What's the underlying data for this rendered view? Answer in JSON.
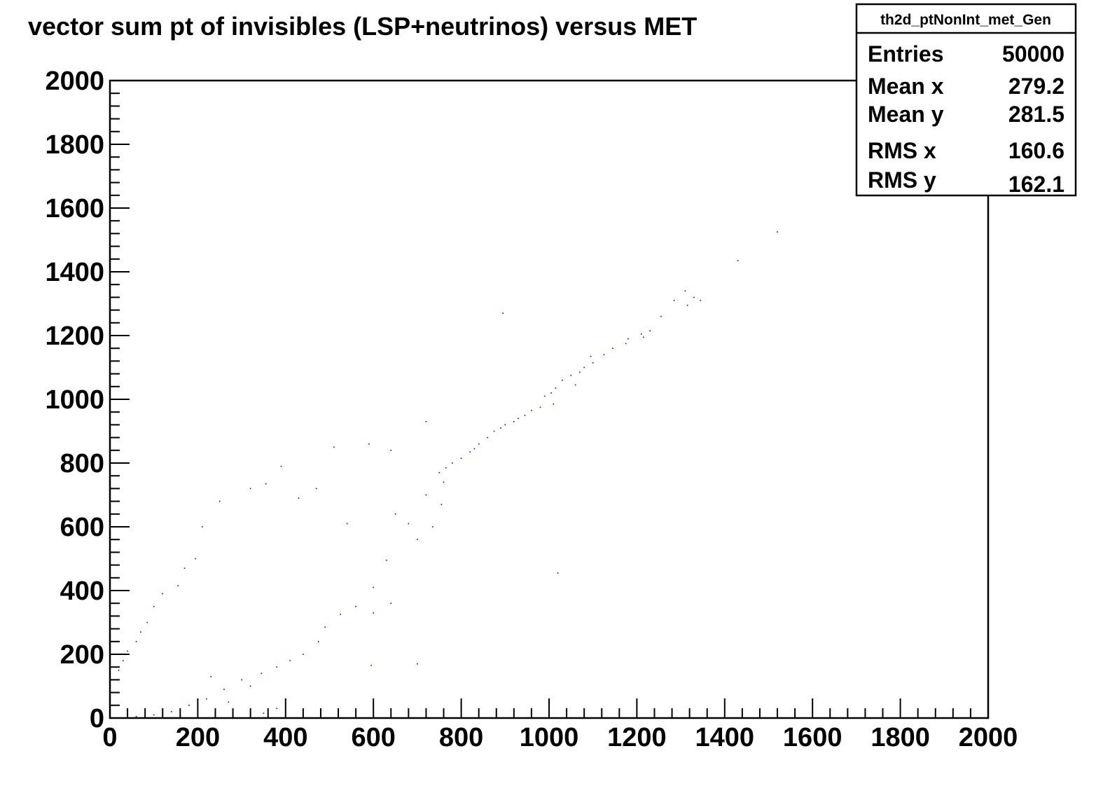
{
  "chart_data": {
    "type": "scatter",
    "title": "vector sum pt of invisibles (LSP+neutrinos) versus MET",
    "xlabel": "",
    "ylabel": "",
    "xlim": [
      0,
      2000
    ],
    "ylim": [
      0,
      2000
    ],
    "x_ticks": [
      "0",
      "200",
      "400",
      "600",
      "800",
      "1000",
      "1200",
      "1400",
      "1600",
      "1800",
      "2000"
    ],
    "y_ticks": [
      "0",
      "200",
      "400",
      "600",
      "800",
      "1000",
      "1200",
      "1400",
      "1600",
      "1800",
      "2000"
    ],
    "grid": false,
    "point_color": "#0000ff",
    "stats_box": {
      "name": "th2d_ptNonInt_met_Gen",
      "placement": "top-right",
      "rows": [
        {
          "label": "Entries",
          "value": "50000"
        },
        {
          "label": "Mean x",
          "value": "279.2"
        },
        {
          "label": "Mean y",
          "value": "281.5"
        },
        {
          "label": "RMS x",
          "value": "160.6"
        },
        {
          "label": "RMS y",
          "value": "162.1"
        }
      ]
    },
    "series": [
      {
        "points": [
          [
            1520,
            1525
          ],
          [
            1430,
            1435
          ],
          [
            1310,
            1340
          ],
          [
            1330,
            1320
          ],
          [
            1345,
            1310
          ],
          [
            1285,
            1310
          ],
          [
            1315,
            1295
          ],
          [
            1255,
            1260
          ],
          [
            895,
            1270
          ],
          [
            1230,
            1215
          ],
          [
            1210,
            1205
          ],
          [
            1215,
            1195
          ],
          [
            1180,
            1190
          ],
          [
            1175,
            1175
          ],
          [
            1145,
            1160
          ],
          [
            1125,
            1140
          ],
          [
            1095,
            1135
          ],
          [
            1100,
            1115
          ],
          [
            1080,
            1100
          ],
          [
            1070,
            1085
          ],
          [
            1050,
            1075
          ],
          [
            1030,
            1060
          ],
          [
            1060,
            1045
          ],
          [
            1015,
            1035
          ],
          [
            1005,
            1020
          ],
          [
            990,
            1010
          ],
          [
            1010,
            985
          ],
          [
            980,
            975
          ],
          [
            960,
            965
          ],
          [
            945,
            950
          ],
          [
            930,
            940
          ],
          [
            920,
            930
          ],
          [
            900,
            920
          ],
          [
            890,
            910
          ],
          [
            875,
            900
          ],
          [
            860,
            880
          ],
          [
            840,
            860
          ],
          [
            830,
            845
          ],
          [
            820,
            835
          ],
          [
            800,
            815
          ],
          [
            780,
            800
          ],
          [
            765,
            785
          ],
          [
            750,
            770
          ],
          [
            720,
            930
          ],
          [
            640,
            840
          ],
          [
            390,
            790
          ],
          [
            755,
            670
          ],
          [
            1020,
            455
          ],
          [
            630,
            495
          ],
          [
            600,
            410
          ],
          [
            540,
            610
          ],
          [
            650,
            640
          ],
          [
            680,
            610
          ],
          [
            700,
            560
          ],
          [
            720,
            700
          ],
          [
            735,
            600
          ],
          [
            760,
            740
          ],
          [
            590,
            860
          ],
          [
            510,
            850
          ],
          [
            470,
            720
          ],
          [
            430,
            690
          ],
          [
            355,
            735
          ],
          [
            320,
            720
          ],
          [
            250,
            680
          ],
          [
            210,
            600
          ],
          [
            195,
            500
          ],
          [
            170,
            470
          ],
          [
            155,
            415
          ],
          [
            120,
            390
          ],
          [
            100,
            350
          ],
          [
            85,
            300
          ],
          [
            70,
            270
          ],
          [
            60,
            240
          ],
          [
            40,
            210
          ],
          [
            30,
            180
          ],
          [
            20,
            150
          ],
          [
            700,
            170
          ],
          [
            595,
            165
          ],
          [
            475,
            240
          ],
          [
            490,
            285
          ],
          [
            525,
            325
          ],
          [
            560,
            350
          ],
          [
            600,
            330
          ],
          [
            640,
            360
          ],
          [
            440,
            200
          ],
          [
            410,
            180
          ],
          [
            380,
            160
          ],
          [
            345,
            140
          ],
          [
            300,
            120
          ],
          [
            260,
            90
          ],
          [
            220,
            60
          ],
          [
            180,
            40
          ],
          [
            140,
            20
          ],
          [
            100,
            10
          ],
          [
            60,
            5
          ],
          [
            350,
            15
          ],
          [
            380,
            30
          ],
          [
            270,
            50
          ],
          [
            320,
            100
          ],
          [
            230,
            130
          ]
        ]
      }
    ]
  }
}
